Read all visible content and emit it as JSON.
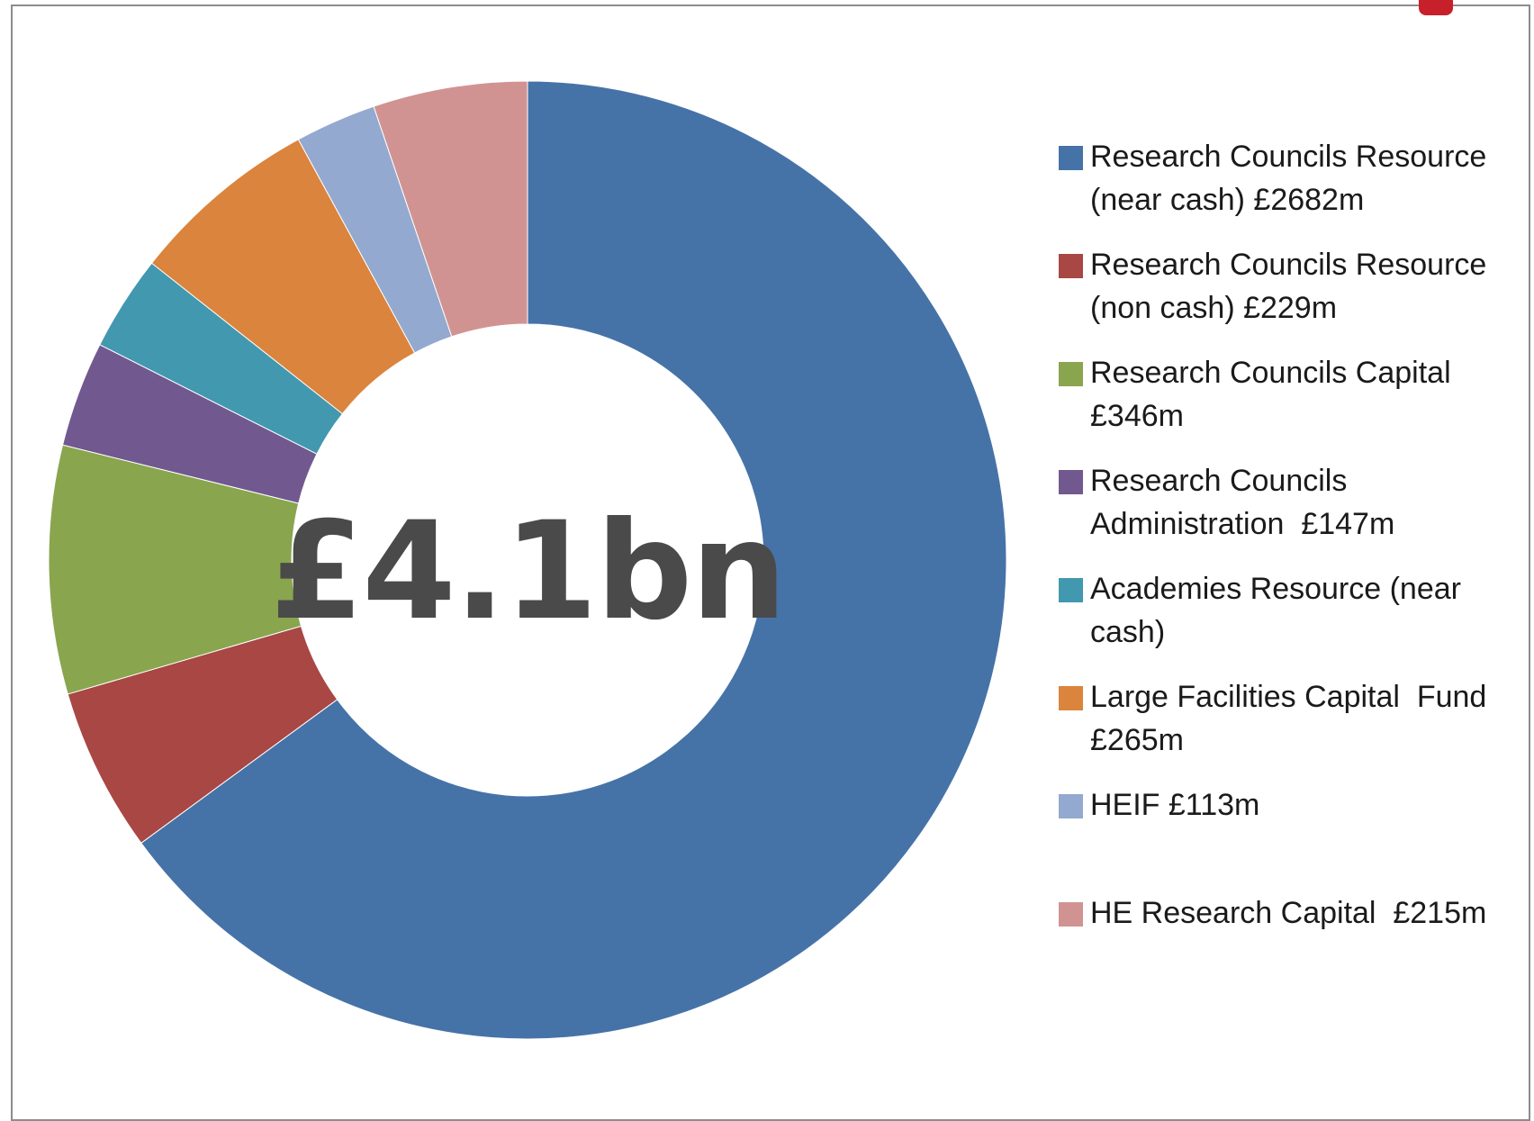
{
  "colors": {
    "background": "#ffffff",
    "frame": "#8c8c8c",
    "corner_mark": "#c8202a",
    "center_text": "#4a4a4a"
  },
  "center_label": "£4.1bn",
  "chart_data": {
    "type": "pie",
    "style": "donut",
    "title": "",
    "center_text": "£4.1bn",
    "legend_position": "right",
    "slices": [
      {
        "label": "Research Councils Resource (near cash) £2682m",
        "value": 2682,
        "color": "#4673a7"
      },
      {
        "label": "Research Councils Resource (non cash) £229m",
        "value": 229,
        "color": "#a84744"
      },
      {
        "label": "Research Councils Capital £346m",
        "value": 346,
        "color": "#89a54e"
      },
      {
        "label": "Research Councils Administration  £147m",
        "value": 147,
        "color": "#71588f"
      },
      {
        "label": "Academies Resource (near cash)",
        "value": 133,
        "color": "#4298af"
      },
      {
        "label": "Large Facilities Capital  Fund £265m",
        "value": 265,
        "color": "#db843d"
      },
      {
        "label": "HEIF £113m",
        "value": 113,
        "color": "#93a9cf"
      },
      {
        "label": "HE Research Capital  £215m",
        "value": 215,
        "color": "#d19392"
      }
    ]
  }
}
